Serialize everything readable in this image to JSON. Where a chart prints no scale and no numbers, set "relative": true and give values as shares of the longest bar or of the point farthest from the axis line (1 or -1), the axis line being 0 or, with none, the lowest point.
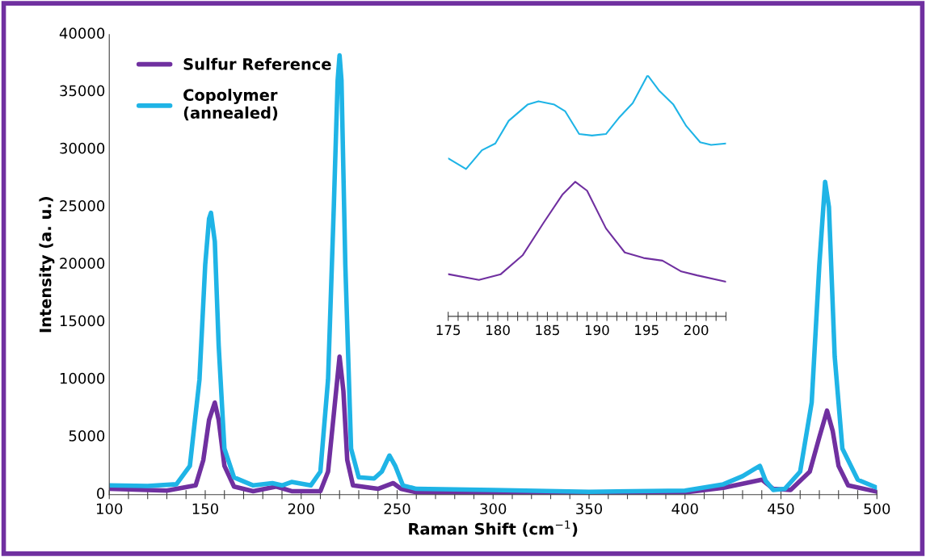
{
  "chart_data": [
    {
      "type": "line",
      "xlabel": "Raman Shift (cm$^{−1}$)",
      "ylabel": "Intensity (a. u.)",
      "legend": "top left",
      "grid": false,
      "xlim": [
        100,
        500
      ],
      "ylim": [
        0,
        40000
      ],
      "xticks": [
        100,
        {
          "value": 110,
          "label": null
        },
        {
          "value": 120,
          "label": null
        },
        {
          "value": 130,
          "label": null
        },
        {
          "value": 140,
          "label": null
        },
        150,
        {
          "value": 160,
          "label": null
        },
        {
          "value": 170,
          "label": null
        },
        {
          "value": 180,
          "label": null
        },
        {
          "value": 190,
          "label": null
        },
        200,
        {
          "value": 210,
          "label": null
        },
        {
          "value": 220,
          "label": null
        },
        {
          "value": 230,
          "label": null
        },
        {
          "value": 240,
          "label": null
        },
        250,
        {
          "value": 260,
          "label": null
        },
        {
          "value": 270,
          "label": null
        },
        {
          "value": 280,
          "label": null
        },
        {
          "value": 290,
          "label": null
        },
        300,
        {
          "value": 310,
          "label": null
        },
        {
          "value": 320,
          "label": null
        },
        {
          "value": 330,
          "label": null
        },
        {
          "value": 340,
          "label": null
        },
        350,
        {
          "value": 360,
          "label": null
        },
        {
          "value": 370,
          "label": null
        },
        {
          "value": 380,
          "label": null
        },
        {
          "value": 390,
          "label": null
        },
        400,
        {
          "value": 410,
          "label": null
        },
        {
          "value": 420,
          "label": null
        },
        {
          "value": 430,
          "label": null
        },
        {
          "value": 440,
          "label": null
        },
        450,
        {
          "value": 460,
          "label": null
        },
        {
          "value": 470,
          "label": null
        },
        {
          "value": 480,
          "label": null
        },
        {
          "value": 490,
          "label": null
        },
        500
      ],
      "yticks": [
        0,
        5000,
        10000,
        15000,
        20000,
        25000,
        30000,
        35000,
        40000
      ],
      "series": [
        {
          "name": "Sulfur Reference",
          "color": "#7030a0",
          "x": [
            100,
            130,
            145,
            149,
            152,
            155,
            157,
            160,
            165,
            175,
            187,
            195,
            210,
            214,
            217,
            220,
            222,
            224,
            227,
            240,
            248,
            252,
            260,
            300,
            400,
            420,
            440,
            446,
            455,
            465,
            470,
            474,
            477,
            480,
            485,
            500
          ],
          "values": [
            500,
            350,
            800,
            3000,
            6500,
            8000,
            6500,
            2500,
            700,
            300,
            700,
            300,
            300,
            2000,
            7000,
            12000,
            9000,
            3000,
            800,
            500,
            1000,
            500,
            200,
            100,
            200,
            600,
            1300,
            500,
            400,
            2000,
            5000,
            7300,
            5500,
            2500,
            800,
            250
          ]
        },
        {
          "name": "Copolymer\n(annealed)",
          "color": "#1fb4e6",
          "x": [
            100,
            120,
            135,
            142,
            147,
            150,
            152,
            153,
            155,
            157,
            160,
            165,
            175,
            185,
            190,
            195,
            205,
            210,
            214,
            217,
            219,
            220,
            221,
            223,
            226,
            230,
            238,
            242,
            246,
            249,
            253,
            260,
            300,
            350,
            400,
            420,
            430,
            437,
            439,
            442,
            446,
            452,
            460,
            466,
            470,
            473,
            475,
            478,
            482,
            490,
            500
          ],
          "values": [
            800,
            750,
            900,
            2500,
            10000,
            20000,
            24000,
            24500,
            22000,
            13000,
            4000,
            1500,
            800,
            1000,
            800,
            1100,
            800,
            2000,
            10000,
            25000,
            36000,
            38200,
            36000,
            20000,
            4000,
            1500,
            1400,
            2000,
            3400,
            2500,
            800,
            500,
            400,
            250,
            350,
            900,
            1600,
            2300,
            2500,
            1200,
            400,
            500,
            2000,
            8000,
            20000,
            27200,
            25000,
            12000,
            4000,
            1300,
            600
          ]
        }
      ]
    },
    {
      "type": "line",
      "relative": true,
      "tick_labels": "x",
      "xlim": [
        175,
        203
      ],
      "xticks": [
        175,
        {
          "value": 176,
          "label": null
        },
        {
          "value": 177,
          "label": null
        },
        {
          "value": 178,
          "label": null
        },
        {
          "value": 179,
          "label": null
        },
        180,
        {
          "value": 181,
          "label": null
        },
        {
          "value": 182,
          "label": null
        },
        {
          "value": 183,
          "label": null
        },
        {
          "value": 184,
          "label": null
        },
        185,
        {
          "value": 186,
          "label": null
        },
        {
          "value": 187,
          "label": null
        },
        {
          "value": 188,
          "label": null
        },
        {
          "value": 189,
          "label": null
        },
        190,
        {
          "value": 191,
          "label": null
        },
        {
          "value": 192,
          "label": null
        },
        {
          "value": 193,
          "label": null
        },
        {
          "value": 194,
          "label": null
        },
        195,
        {
          "value": 196,
          "label": null
        },
        {
          "value": 197,
          "label": null
        },
        {
          "value": 198,
          "label": null
        },
        {
          "value": 199,
          "label": null
        },
        200,
        {
          "value": 201,
          "label": null
        },
        {
          "value": 202,
          "label": null
        },
        {
          "value": 203,
          "label": null
        }
      ],
      "series": [
        {
          "color": "#7030a0",
          "x": [
            175,
            178.1,
            180.3,
            182.5,
            184.6,
            186.5,
            187.8,
            189.0,
            190.9,
            192.8,
            194.7,
            196.6,
            198.5,
            200.1,
            203
          ],
          "values": [
            0.175,
            0.151,
            0.175,
            0.253,
            0.387,
            0.504,
            0.558,
            0.521,
            0.365,
            0.265,
            0.242,
            0.231,
            0.186,
            0.17,
            0.144
          ]
        },
        {
          "color": "#1fb4e6",
          "x": [
            175,
            176.8,
            178.4,
            179.75,
            181.1,
            183.0,
            184.1,
            185.7,
            186.8,
            188.2,
            189.5,
            190.9,
            192.2,
            193.6,
            195.1,
            196.3,
            197.7,
            199.0,
            200.4,
            201.5,
            203
          ],
          "values": [
            0.655,
            0.611,
            0.689,
            0.717,
            0.811,
            0.878,
            0.892,
            0.878,
            0.85,
            0.756,
            0.75,
            0.756,
            0.823,
            0.884,
            1.0,
            0.934,
            0.878,
            0.789,
            0.722,
            0.711,
            0.717
          ]
        }
      ]
    }
  ]
}
